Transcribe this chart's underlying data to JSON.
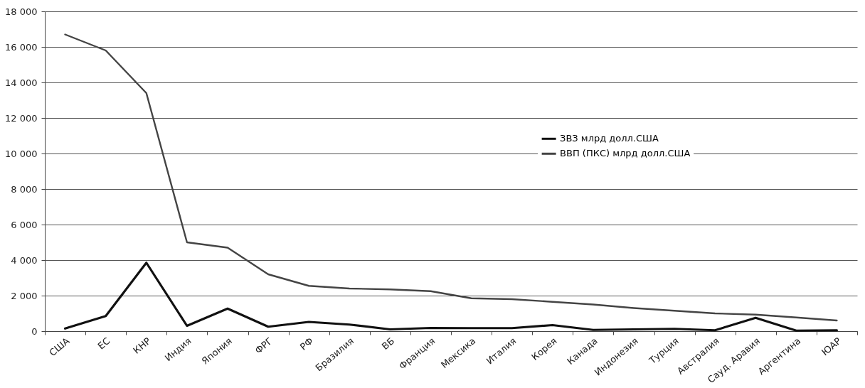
{
  "chart_data": {
    "type": "line",
    "categories": [
      "США",
      "ЕС",
      "КНР",
      "Индия",
      "Япония",
      "ФРГ",
      "РФ",
      "Бразилия",
      "ВБ",
      "Франция",
      "Мексика",
      "Италия",
      "Корея",
      "Канада",
      "Индонезия",
      "Турция",
      "Австралия",
      "Сауд. Аравия",
      "Аргентина",
      "ЮАР"
    ],
    "series": [
      {
        "name": "ЗВЗ млрд долл.США",
        "color": "#111111",
        "values": [
          150,
          850,
          3850,
          300,
          1270,
          250,
          520,
          370,
          100,
          180,
          170,
          170,
          340,
          70,
          100,
          130,
          50,
          750,
          30,
          50
        ]
      },
      {
        "name": "ВВП (ПКС) млрд долл.США",
        "color": "#444444",
        "values": [
          16700,
          15800,
          13400,
          5000,
          4700,
          3200,
          2550,
          2400,
          2350,
          2250,
          1850,
          1800,
          1650,
          1500,
          1300,
          1150,
          1000,
          930,
          770,
          600
        ]
      }
    ],
    "ylim": [
      0,
      18000
    ],
    "yticks": [
      0,
      {
        "value": 2000,
        "label": "2 000"
      },
      {
        "value": 4000,
        "label": "4 000"
      },
      {
        "value": 6000,
        "label": "6 000"
      },
      {
        "value": 8000,
        "label": "8 000"
      },
      {
        "value": 10000,
        "label": "10 000"
      },
      {
        "value": 12000,
        "label": "12 000"
      },
      {
        "value": 14000,
        "label": "14 000"
      },
      {
        "value": 16000,
        "label": "16 000"
      },
      {
        "value": 18000,
        "label": "18 000"
      }
    ],
    "grid": "y",
    "legend": "right",
    "line_style": "solid",
    "marker": "none"
  }
}
